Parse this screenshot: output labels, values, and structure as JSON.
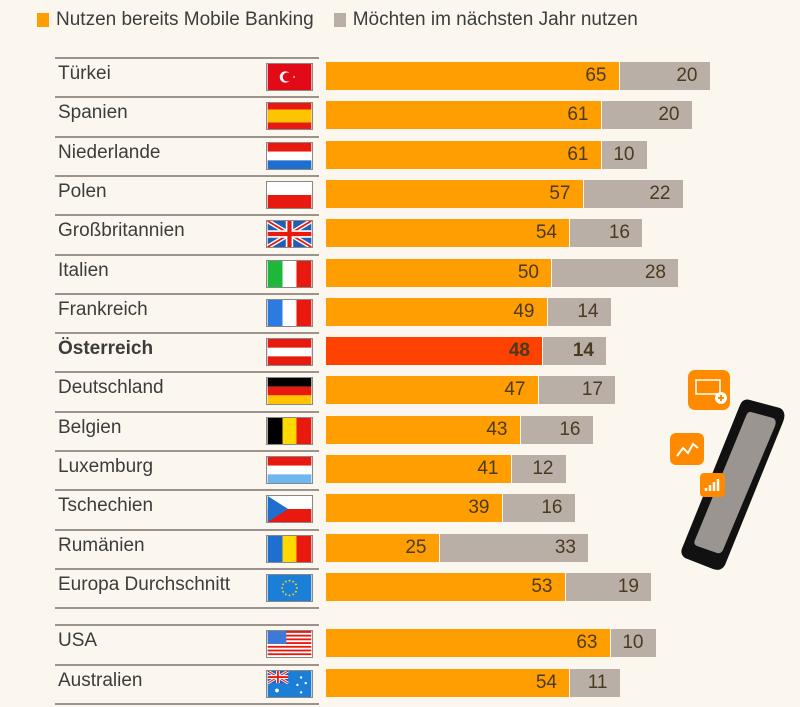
{
  "colors": {
    "current": "#ff9e00",
    "planned": "#b9afa6",
    "highlight": "#ff4200",
    "background": "#fbf7ee"
  },
  "chart_data": {
    "type": "bar",
    "orientation": "horizontal-stacked",
    "title": "",
    "xlabel": "",
    "ylabel": "",
    "xlim": [
      0,
      100
    ],
    "legend_position": "top",
    "series": [
      {
        "name": "Nutzen bereits Mobile Banking",
        "values": [
          65,
          61,
          61,
          57,
          54,
          50,
          49,
          48,
          47,
          43,
          41,
          39,
          25,
          53,
          63,
          54
        ]
      },
      {
        "name": "Möchten im nächsten Jahr nutzen",
        "values": [
          20,
          20,
          10,
          22,
          16,
          28,
          14,
          14,
          17,
          16,
          12,
          16,
          33,
          19,
          10,
          11
        ]
      }
    ],
    "categories": [
      "Türkei",
      "Spanien",
      "Niederlande",
      "Polen",
      "Großbritannien",
      "Italien",
      "Frankreich",
      "Österreich",
      "Deutschland",
      "Belgien",
      "Luxemburg",
      "Tschechien",
      "Rumänien",
      "Europa Durchschnitt",
      "USA",
      "Australien"
    ],
    "highlighted_category": "Österreich"
  },
  "legend": [
    {
      "label": "Nutzen bereits Mobile Banking"
    },
    {
      "label": "Möchten im nächsten Jahr nutzen"
    }
  ],
  "rows": [
    {
      "country": "Türkei",
      "flag": "turkey-flag-icon",
      "current": 65,
      "planned": 20
    },
    {
      "country": "Spanien",
      "flag": "spain-flag-icon",
      "current": 61,
      "planned": 20
    },
    {
      "country": "Niederlande",
      "flag": "netherlands-flag-icon",
      "current": 61,
      "planned": 10
    },
    {
      "country": "Polen",
      "flag": "poland-flag-icon",
      "current": 57,
      "planned": 22
    },
    {
      "country": "Großbritannien",
      "flag": "uk-flag-icon",
      "current": 54,
      "planned": 16
    },
    {
      "country": "Italien",
      "flag": "italy-flag-icon",
      "current": 50,
      "planned": 28
    },
    {
      "country": "Frankreich",
      "flag": "france-flag-icon",
      "current": 49,
      "planned": 14
    },
    {
      "country": "Österreich",
      "flag": "austria-flag-icon",
      "current": 48,
      "planned": 14,
      "highlight": true
    },
    {
      "country": "Deutschland",
      "flag": "germany-flag-icon",
      "current": 47,
      "planned": 17
    },
    {
      "country": "Belgien",
      "flag": "belgium-flag-icon",
      "current": 43,
      "planned": 16
    },
    {
      "country": "Luxemburg",
      "flag": "luxembourg-flag-icon",
      "current": 41,
      "planned": 12
    },
    {
      "country": "Tschechien",
      "flag": "czech-flag-icon",
      "current": 39,
      "planned": 16
    },
    {
      "country": "Rumänien",
      "flag": "romania-flag-icon",
      "current": 25,
      "planned": 33
    },
    {
      "country": "Europa Durchschnitt",
      "flag": "eu-flag-icon",
      "current": 53,
      "planned": 19
    },
    {
      "country": "USA",
      "flag": "usa-flag-icon",
      "current": 63,
      "planned": 10
    },
    {
      "country": "Australien",
      "flag": "australia-flag-icon",
      "current": 54,
      "planned": 11
    }
  ]
}
